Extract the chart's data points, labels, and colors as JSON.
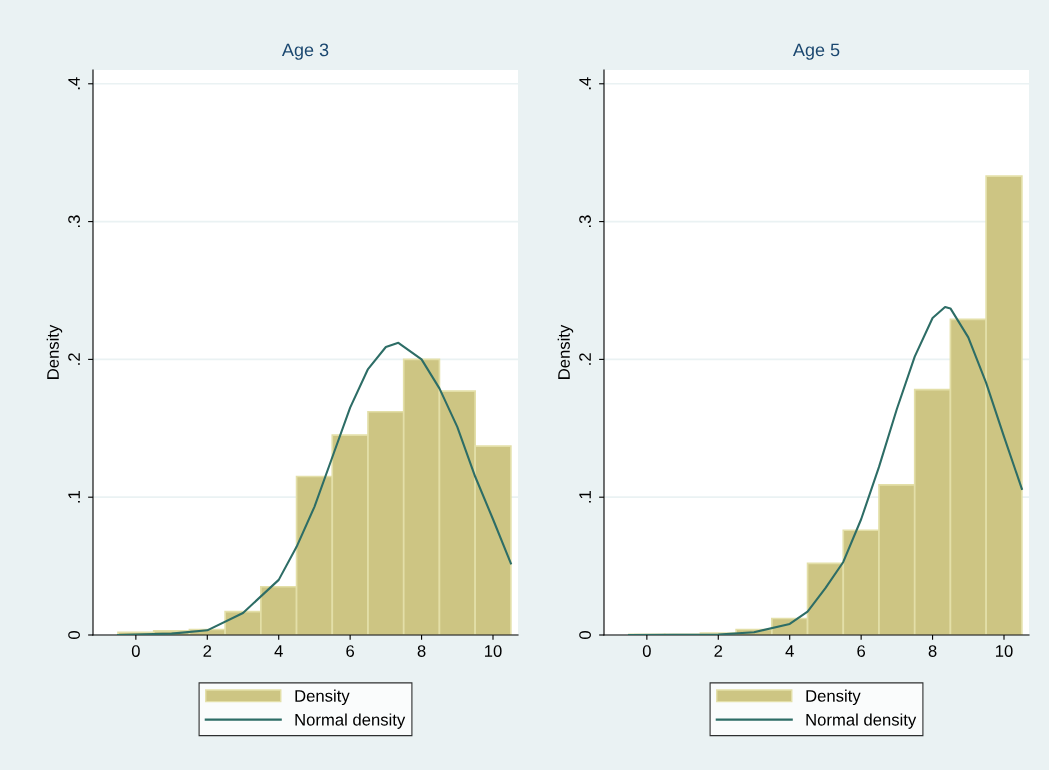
{
  "chart_data": [
    {
      "type": "histogram",
      "title": "Age 3",
      "ylabel": "Density",
      "series": [
        {
          "type": "histogram",
          "name": "Density",
          "color": "#cdc583",
          "bins": [
            -0.5,
            0.5,
            1.5,
            2.5,
            3.5,
            4.5,
            5.5,
            6.5,
            7.5,
            8.5,
            9.5,
            10.5
          ],
          "values": [
            0.002,
            0.003,
            0.004,
            0.017,
            0.035,
            0.115,
            0.145,
            0.162,
            0.2,
            0.177,
            0.137
          ]
        },
        {
          "type": "line",
          "name": "Normal density",
          "color": "#2d6d66",
          "x": [
            -0.5,
            0,
            1,
            2,
            3,
            4,
            4.5,
            5,
            5.5,
            6,
            6.5,
            7,
            7.35,
            8,
            8.5,
            9,
            9.5,
            10,
            10.5
          ],
          "values": [
            0,
            0.0004,
            0.001,
            0.0034,
            0.016,
            0.04,
            0.064,
            0.093,
            0.129,
            0.165,
            0.193,
            0.209,
            0.212,
            0.2,
            0.179,
            0.151,
            0.115,
            0.084,
            0.052
          ]
        }
      ],
      "xlim": [
        -1.2,
        10.7
      ],
      "xticks": [
        0,
        2,
        4,
        6,
        8,
        10
      ],
      "ylim": [
        0,
        0.41
      ],
      "yticks": [
        0,
        {
          "value": 0.1,
          "label": ".1"
        },
        {
          "value": 0.2,
          "label": ".2"
        },
        {
          "value": 0.3,
          "label": ".3"
        },
        {
          "value": 0.4,
          "label": ".4"
        }
      ],
      "grid": "y",
      "legend": "bottom"
    },
    {
      "type": "histogram",
      "title": "Age 5",
      "ylabel": "Density",
      "series": [
        {
          "type": "histogram",
          "name": "Density",
          "color": "#cdc583",
          "bins": [
            -0.5,
            0.5,
            1.5,
            2.5,
            3.5,
            4.5,
            5.5,
            6.5,
            7.5,
            8.5,
            9.5,
            10.5
          ],
          "values": [
            0.0005,
            0.0005,
            0.0014,
            0.004,
            0.012,
            0.052,
            0.076,
            0.109,
            0.178,
            0.229,
            0.333
          ]
        },
        {
          "type": "line",
          "name": "Normal density",
          "color": "#2d6d66",
          "x": [
            -0.5,
            2,
            3,
            4,
            4.5,
            5,
            5.5,
            6,
            6.5,
            7,
            7.5,
            8,
            8.35,
            8.5,
            9,
            9.5,
            10,
            10.5
          ],
          "values": [
            0,
            0.0003,
            0.002,
            0.008,
            0.017,
            0.034,
            0.053,
            0.084,
            0.122,
            0.164,
            0.202,
            0.23,
            0.238,
            0.237,
            0.216,
            0.183,
            0.144,
            0.106
          ]
        }
      ],
      "xlim": [
        -1.2,
        10.7
      ],
      "xticks": [
        0,
        2,
        4,
        6,
        8,
        10
      ],
      "ylim": [
        0,
        0.41
      ],
      "yticks": [
        0,
        {
          "value": 0.1,
          "label": ".1"
        },
        {
          "value": 0.2,
          "label": ".2"
        },
        {
          "value": 0.3,
          "label": ".3"
        },
        {
          "value": 0.4,
          "label": ".4"
        }
      ],
      "grid": "y",
      "legend": "bottom"
    }
  ]
}
